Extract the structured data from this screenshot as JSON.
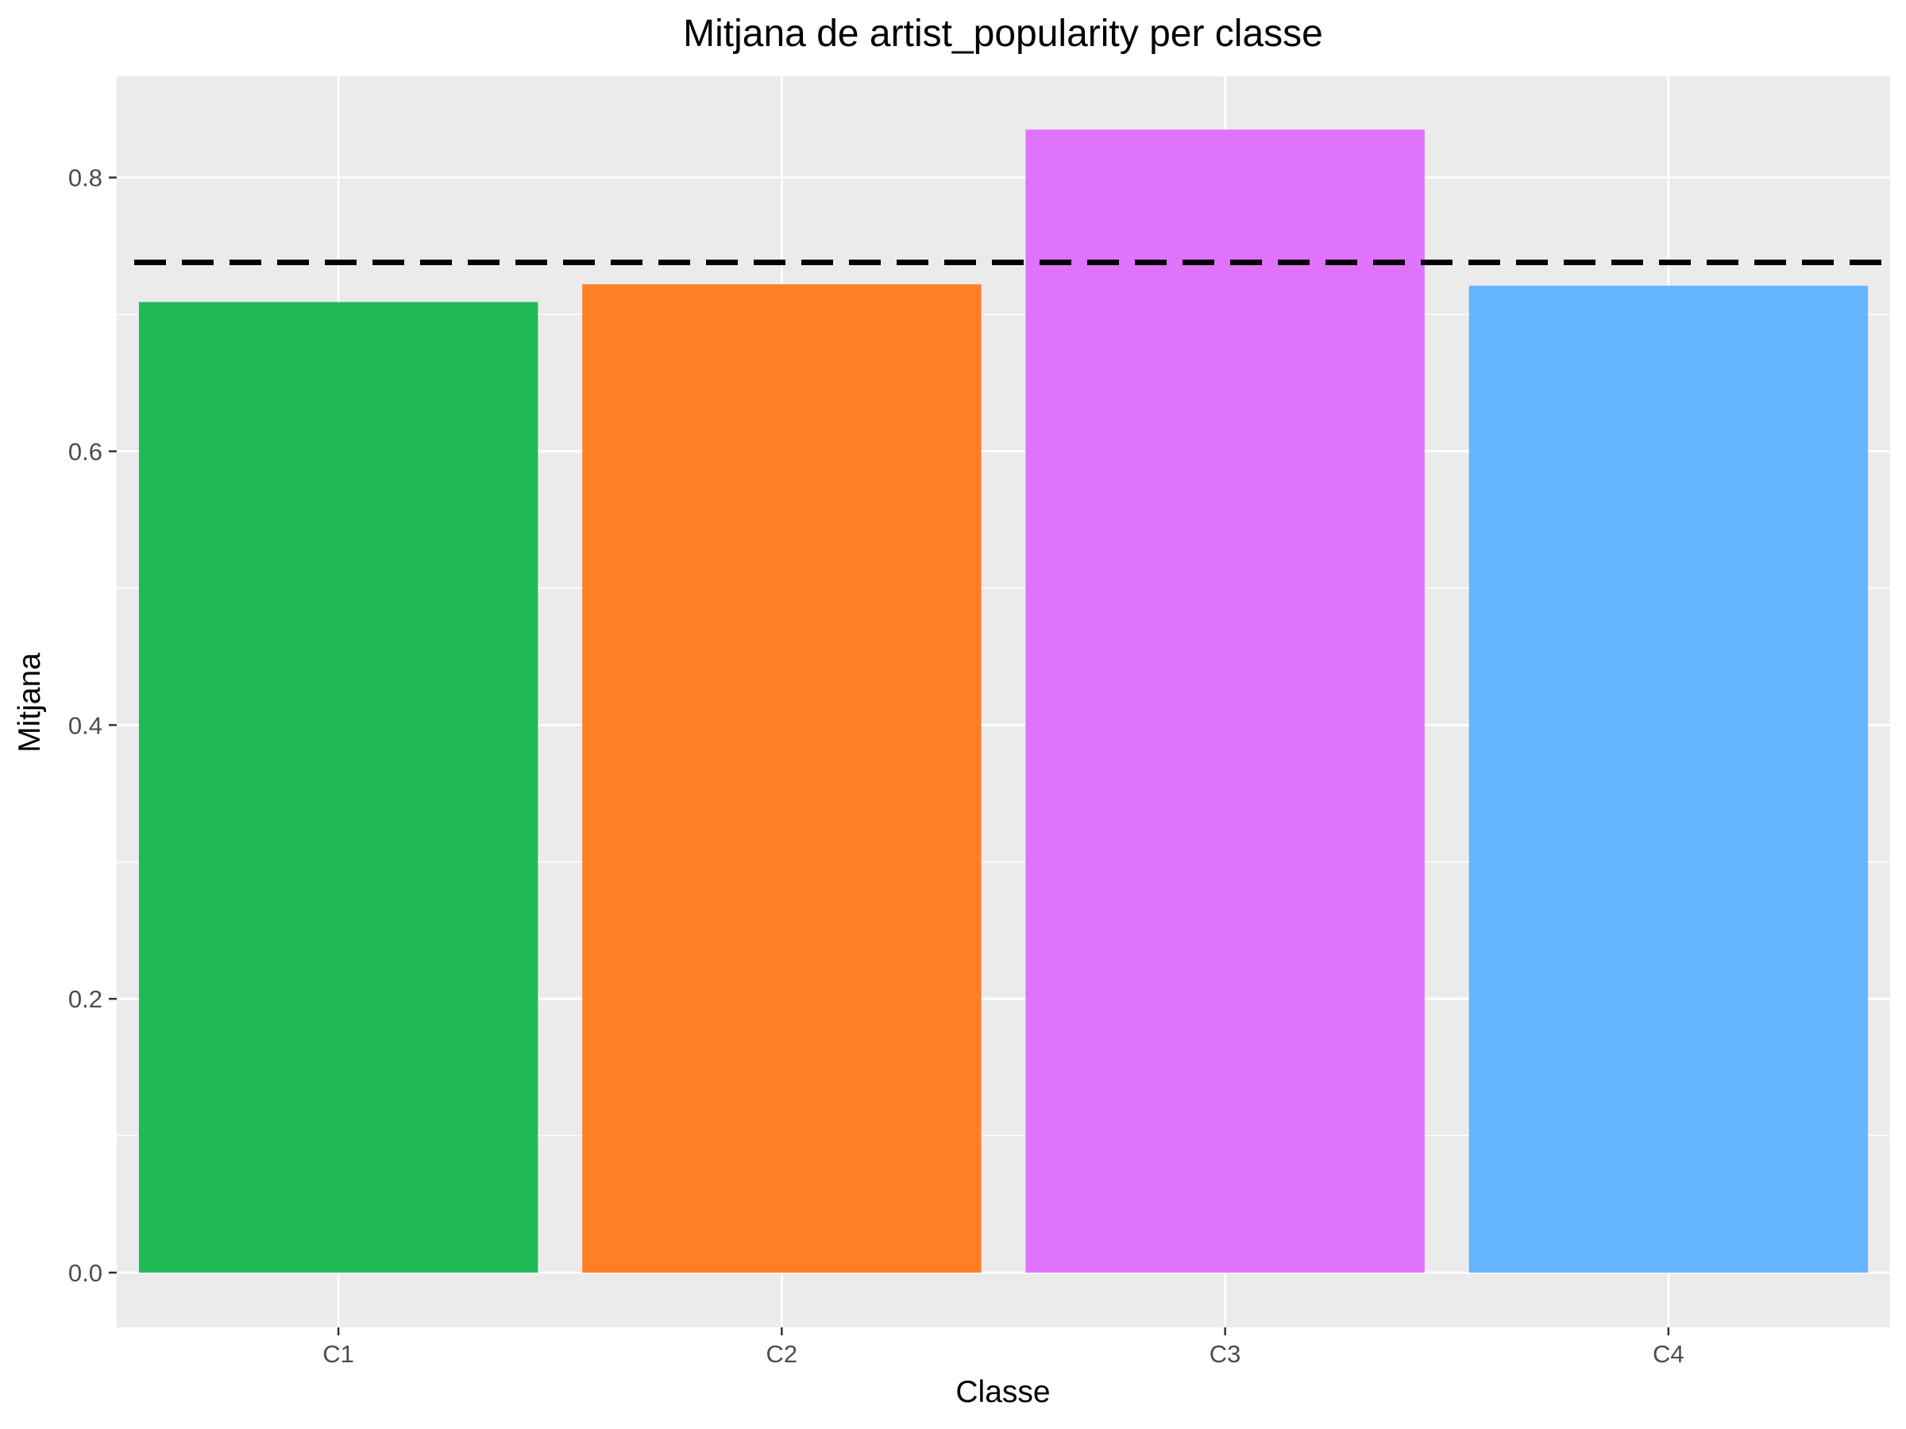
{
  "chart_data": {
    "type": "bar",
    "title": "Mitjana de artist_popularity per classe",
    "xlabel": "Classe",
    "ylabel": "Mitjana",
    "categories": [
      "C1",
      "C2",
      "C3",
      "C4"
    ],
    "values": [
      0.709,
      0.722,
      0.835,
      0.721
    ],
    "reference_line": {
      "value": 0.738,
      "style": "dashed",
      "color": "#000000"
    },
    "bar_colors": [
      "#1FBA56",
      "#FF7F26",
      "#DF73FC",
      "#66B5FF"
    ],
    "ylim": [
      -0.04,
      0.874
    ],
    "yticks": [
      0.0,
      0.2,
      0.4,
      0.6,
      0.8
    ],
    "ytick_labels": [
      "0.0",
      "0.2",
      "0.4",
      "0.6",
      "0.8"
    ],
    "panel_background": "#EBEBEB",
    "gridline_color": "#FFFFFF",
    "grid": true,
    "legend": "none"
  }
}
